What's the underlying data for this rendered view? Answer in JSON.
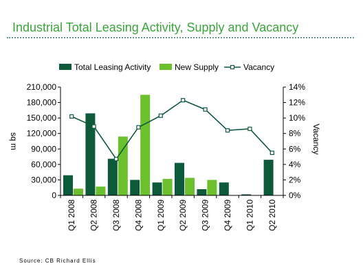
{
  "chart_data": {
    "type": "bar",
    "title": "Industrial Total Leasing Activity, Supply and Vacancy",
    "categories": [
      "Q1 2008",
      "Q2 2008",
      "Q3 2008",
      "Q4 2008",
      "Q1 2009",
      "Q2 2009",
      "Q3 2009",
      "Q4 2009",
      "Q1 2010",
      "Q2 2010"
    ],
    "series": [
      {
        "name": "Total Leasing Activity",
        "kind": "bar",
        "axis": "left",
        "color": "#0c5a3a",
        "values": [
          39000,
          159000,
          71000,
          30000,
          25000,
          63000,
          12000,
          25000,
          2000,
          69000
        ]
      },
      {
        "name": "New Supply",
        "kind": "bar",
        "axis": "left",
        "color": "#6cc02e",
        "values": [
          13000,
          17000,
          114000,
          195000,
          32000,
          34000,
          30000,
          0,
          0,
          0
        ]
      },
      {
        "name": "Vacancy",
        "kind": "line",
        "axis": "right",
        "color": "#0c5a3a",
        "values": [
          10.2,
          8.9,
          4.7,
          8.8,
          10.3,
          12.3,
          11.1,
          8.4,
          8.6,
          5.5
        ]
      }
    ],
    "ylabel": "sq m",
    "y2label": "Vacancy",
    "ylim": [
      0,
      210000
    ],
    "y2lim": [
      0,
      14
    ],
    "yticks": [
      "0",
      "30,000",
      "60,000",
      "90,000",
      "120,000",
      "150,000",
      "180,000",
      "210,000"
    ],
    "y2ticks": [
      "0%",
      "2%",
      "4%",
      "6%",
      "8%",
      "10%",
      "12%",
      "14%"
    ],
    "legend_position": "top",
    "grid": false
  },
  "source": "Source: CB Richard Ellis"
}
